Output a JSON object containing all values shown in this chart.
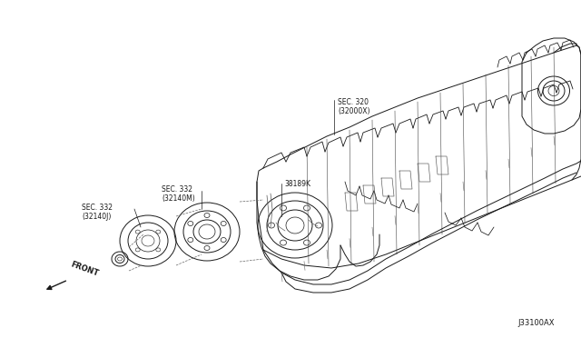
{
  "bg_color": "#ffffff",
  "line_color": "#1a1a1a",
  "text_color": "#1a1a1a",
  "part_number": "J33100AX",
  "label_sec320": "SEC. 320\n(32000X)",
  "label_sec332m": "SEC. 332\n(32140M)",
  "label_sec332j": "SEC. 332\n(32140J)",
  "label_38189k": "38189K",
  "label_front": "FRONT",
  "figsize": [
    6.4,
    3.72
  ],
  "dpi": 100
}
